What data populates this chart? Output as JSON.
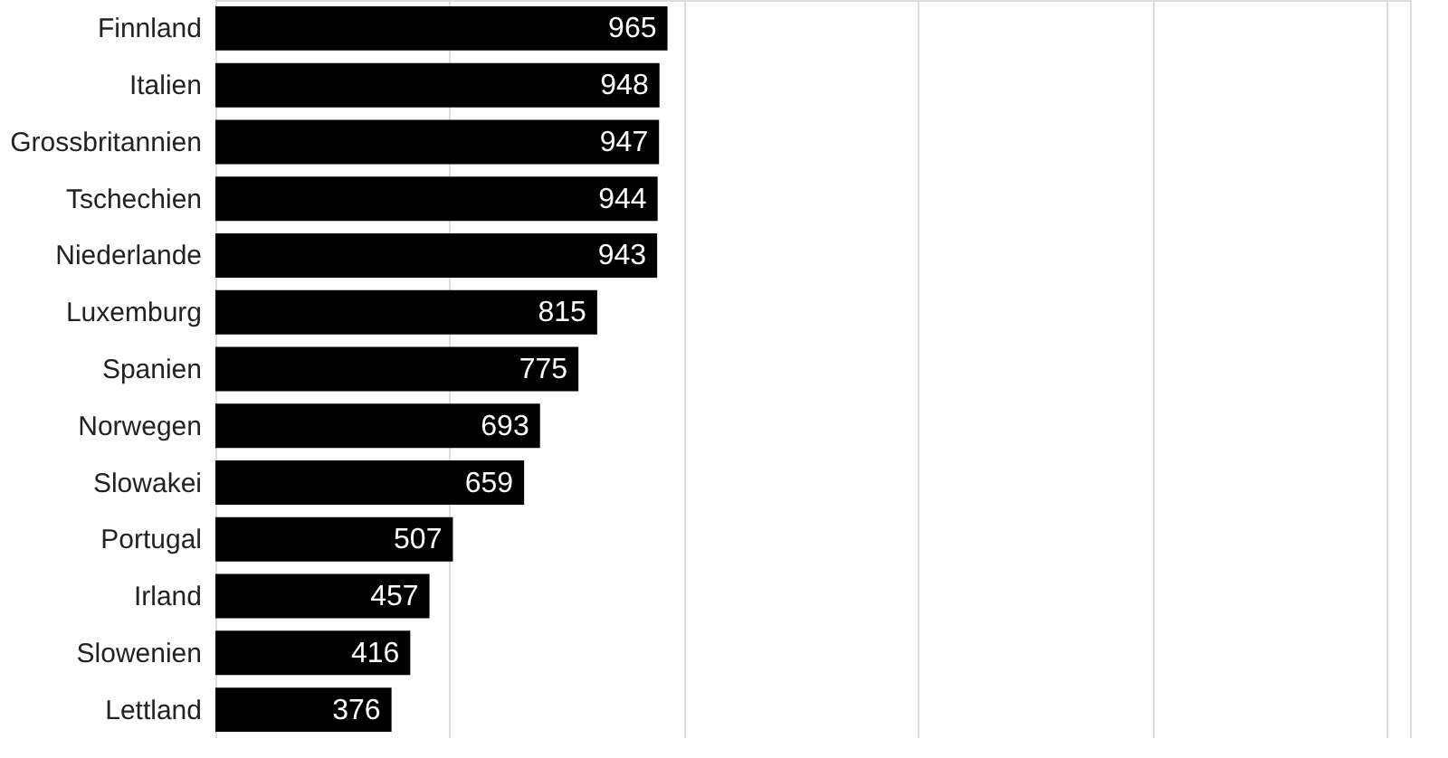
{
  "chart_data": {
    "type": "bar",
    "orientation": "horizontal",
    "categories": [
      "Finnland",
      "Italien",
      "Grossbritannien",
      "Tschechien",
      "Niederlande",
      "Luxemburg",
      "Spanien",
      "Norwegen",
      "Slowakei",
      "Portugal",
      "Irland",
      "Slowenien",
      "Lettland"
    ],
    "values": [
      965,
      948,
      947,
      944,
      943,
      815,
      775,
      693,
      659,
      507,
      457,
      416,
      376
    ],
    "color": "#000000",
    "data_labels": true,
    "grid": "x",
    "tick_labels": "y",
    "xlim": [
      0,
      2550
    ],
    "xticks": [
      {
        "value": 0,
        "label": null
      },
      {
        "value": 500,
        "label": null
      },
      {
        "value": 1000,
        "label": null
      },
      {
        "value": 1500,
        "label": null
      },
      {
        "value": 2000,
        "label": null
      },
      {
        "value": 2500,
        "label": null
      }
    ]
  }
}
